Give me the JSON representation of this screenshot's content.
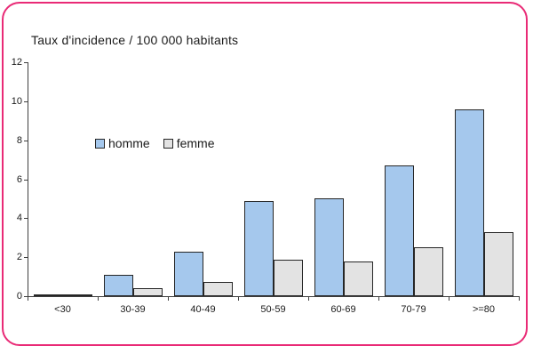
{
  "frame": {
    "border_color": "#E92A76",
    "background_color": "#FFFFFF"
  },
  "chart_data": {
    "type": "bar",
    "title": "Taux d'incidence / 100 000 habitants",
    "categories": [
      "<30",
      "30-39",
      "40-49",
      "50-59",
      "60-69",
      "70-79",
      ">=80"
    ],
    "series": [
      {
        "name": "homme",
        "color": "#A5C8ED",
        "values": [
          0.1,
          1.1,
          2.3,
          4.9,
          5.0,
          6.7,
          9.6
        ]
      },
      {
        "name": "femme",
        "color": "#E3E3E3",
        "values": [
          0.05,
          0.4,
          0.75,
          1.85,
          1.8,
          2.5,
          3.3
        ]
      }
    ],
    "xlabel": "",
    "ylabel": "",
    "ylim": [
      0,
      12
    ],
    "yticks": [
      0,
      2,
      4,
      6,
      8,
      10,
      12
    ],
    "bar_border_color": "#262626",
    "axis_color": "#3F3F3F",
    "grid": false,
    "legend_position": "upper-left-inside"
  }
}
